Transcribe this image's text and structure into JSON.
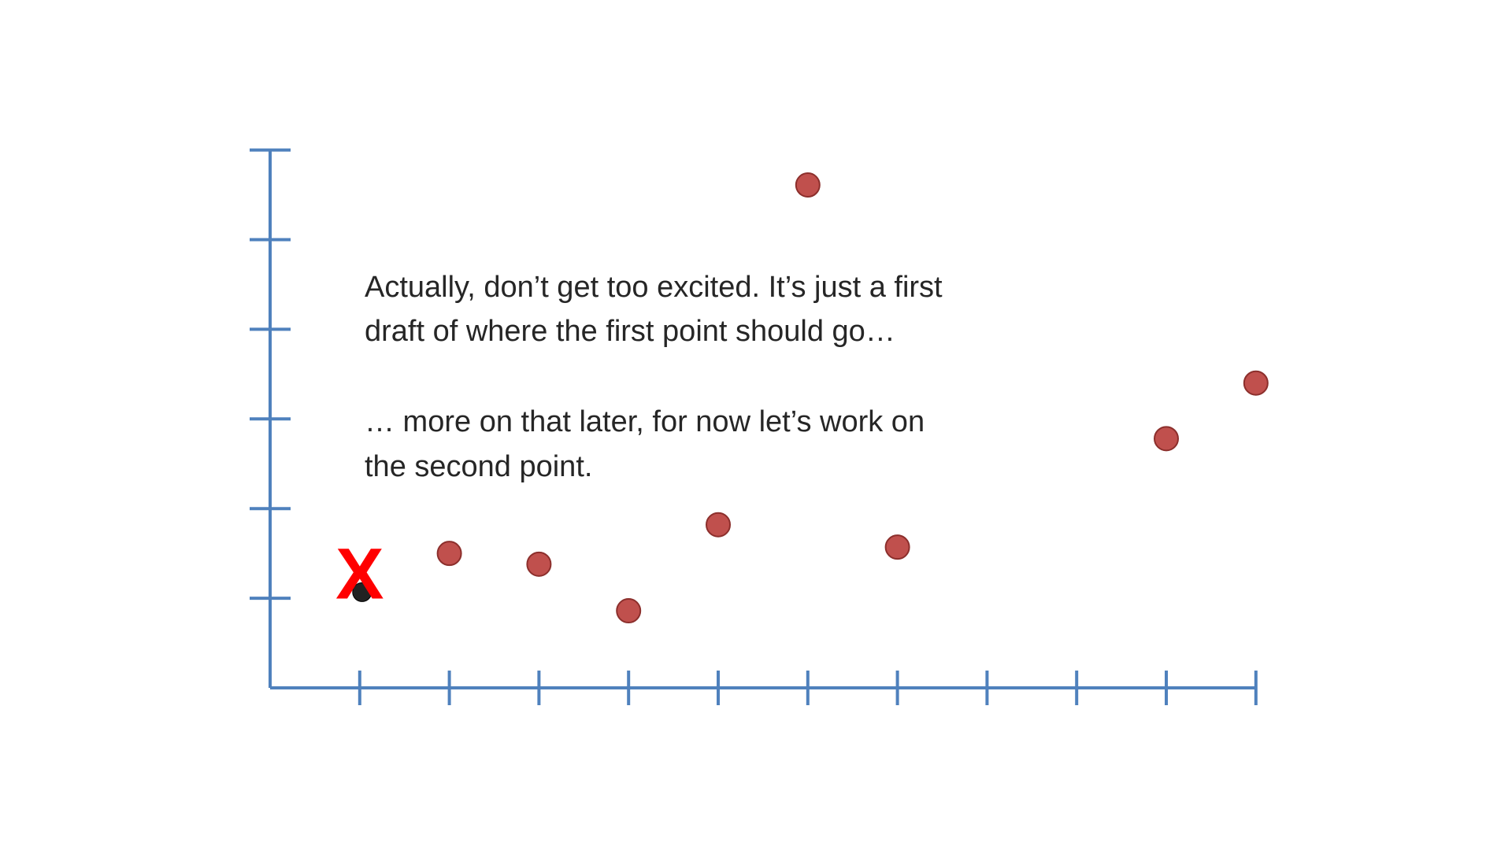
{
  "chart_data": {
    "type": "scatter",
    "xlim": [
      0,
      11
    ],
    "ylim": [
      0,
      6
    ],
    "x_ticks": [
      1,
      2,
      3,
      4,
      5,
      6,
      7,
      8,
      9,
      10,
      11
    ],
    "y_ticks": [
      1,
      2,
      3,
      4,
      5,
      6
    ],
    "grid": false,
    "axis_color": "#4f81bd",
    "point_color": "#c0504d",
    "point_stroke": "#8c2f2c",
    "series": [
      {
        "x": [
          2,
          3,
          4,
          5,
          6,
          7,
          10,
          11
        ],
        "y": [
          1.5,
          1.38,
          0.86,
          1.82,
          5.61,
          1.57,
          2.78,
          3.4
        ]
      }
    ],
    "draft_point": {
      "x": 1,
      "y": 1.05
    },
    "draft_marker": {
      "label": "X",
      "color": "#ff0000"
    },
    "annotation": {
      "line1": "Actually, don’t get too excited. It’s just a first",
      "line2": "draft of where the first point should go…",
      "line3": "… more on that later, for now let’s work on",
      "line4": "the second point."
    }
  }
}
